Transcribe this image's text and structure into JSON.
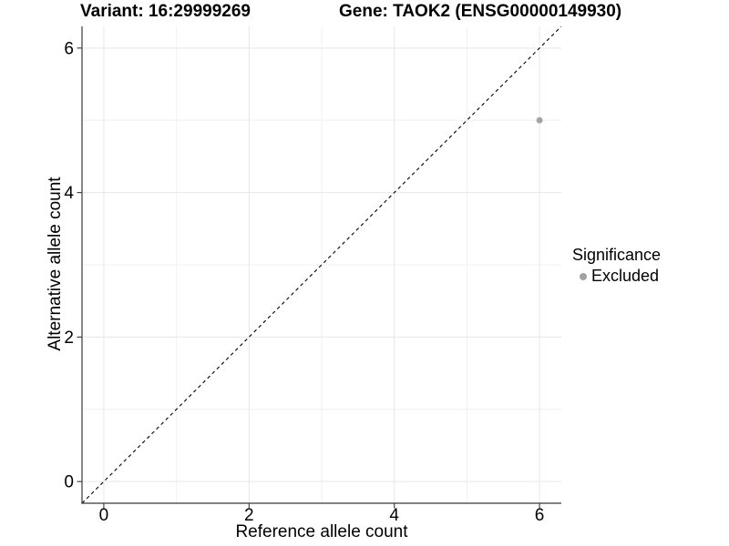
{
  "chart_data": {
    "type": "scatter",
    "title_left": "Variant: 16:29999269",
    "title_right": "Gene: TAOK2 (ENSG00000149930)",
    "xlabel": "Reference allele count",
    "ylabel": "Alternative allele count",
    "xlim": [
      -0.3,
      6.3
    ],
    "ylim": [
      -0.3,
      6.3
    ],
    "xticks": [
      0,
      2,
      4,
      6
    ],
    "yticks": [
      0,
      2,
      4,
      6
    ],
    "x_minor_ticks": [
      1,
      3,
      5
    ],
    "y_minor_ticks": [
      1,
      3,
      5
    ],
    "grid": true,
    "legend": {
      "title": "Significance",
      "position": "right",
      "entries": [
        {
          "label": "Excluded",
          "color": "#a2a2a2"
        }
      ]
    },
    "identity_line": {
      "slope": 1,
      "intercept": 0,
      "style": "dashed",
      "color": "#000000"
    },
    "series": [
      {
        "name": "Excluded",
        "color": "#a2a2a2",
        "marker": "circle",
        "size": 3.4,
        "points": [
          {
            "x": 6,
            "y": 5
          }
        ]
      }
    ]
  },
  "colors": {
    "background": "#ffffff",
    "grid_major": "#e7e7e7",
    "grid_minor": "#f0f0f0",
    "axis_line": "#383838",
    "tick_text": "#000000",
    "diagonal": "#000000",
    "point": "#a2a2a2"
  }
}
